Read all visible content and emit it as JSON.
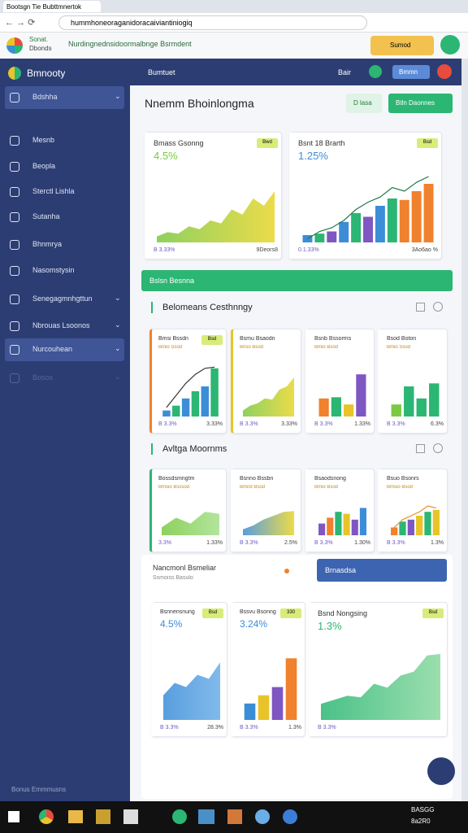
{
  "browser": {
    "tab": "Bootsgn Tie Bubttmnertok",
    "url": "hummhoneoraganidoracaiviantiniogiq",
    "site_name": "Sonat.",
    "site_name2": "Dbonds",
    "site_title": "Nurdingnednsidoormalbnge Bsrmdent",
    "site_button": "Sumod"
  },
  "sidebar": {
    "brand": "Bmnooty",
    "items": [
      {
        "label": "Bdshha",
        "active": true,
        "arrow": true
      },
      {
        "label": "Mesnb"
      },
      {
        "label": "Beopla"
      },
      {
        "label": "Sterctl Lishla"
      },
      {
        "label": "Sutanha"
      },
      {
        "label": "Bhnmrya"
      },
      {
        "label": "Nasomstysin"
      },
      {
        "label": "Senegagmnhgttun",
        "arrow": true
      },
      {
        "label": "Nbrouas Lsoonos",
        "arrow": true
      },
      {
        "label": "Nurcouhean",
        "active": true,
        "arrow": true
      },
      {
        "label": "Bosos",
        "faded": true,
        "arrow": true
      }
    ],
    "footer": "Bonus Emmmusns"
  },
  "topbar": {
    "title": "Bumtuet",
    "link": "Bair",
    "button": "Bmmn"
  },
  "header": {
    "title": "Nnemm Bhoinlongma",
    "buttons": [
      "D lasa",
      "Btln Daonnes"
    ]
  },
  "top_cards": [
    {
      "title": "Bmass Gsonng",
      "value": "4.5%",
      "badge": "Bwd",
      "foot_left": "B 3.33%",
      "foot_right": "9Deors8",
      "accent": "#ffffff",
      "chart": {
        "type": "area",
        "color": "#7ac943",
        "color2": "#e8d52a",
        "values": [
          8,
          14,
          12,
          22,
          18,
          30,
          26,
          45,
          38,
          60,
          50,
          70
        ]
      }
    },
    {
      "title": "Bsnt 18 Brarth",
      "value": "1.25%",
      "badge": "Bsd",
      "foot_left": "0.1.33%",
      "foot_right": "3Ao6ao %",
      "accent": "#ffffff",
      "chart": {
        "type": "combo",
        "colors": [
          "#3c8dd8",
          "#2bb673",
          "#7e57c2",
          "#3c8dd8",
          "#2bb673",
          "#7e57c2",
          "#3c8dd8",
          "#2bb673",
          "#f0812d",
          "#f0812d",
          "#f0812d"
        ],
        "values": [
          10,
          12,
          15,
          28,
          40,
          35,
          50,
          60,
          58,
          70,
          80
        ],
        "line_color": "#1f7a4a",
        "line_values": [
          5,
          15,
          20,
          30,
          45,
          55,
          62,
          75,
          70,
          82,
          90
        ]
      }
    }
  ],
  "banner": "Bslsn Besnna",
  "sections": [
    {
      "title": "Belomeans Cesthnngy",
      "cards": [
        {
          "title": "Bmsi Bssdn",
          "subtitle": "Bmio Ssod",
          "badge": "Bsd",
          "foot_left": "B 3.3%",
          "foot_right": "3.33%",
          "accent": "#f0812d",
          "chart": {
            "type": "combo",
            "colors": [
              "#3c8dd8",
              "#2bb673",
              "#3c8dd8",
              "#2bb673",
              "#3c8dd8",
              "#2bb673"
            ],
            "values": [
              10,
              18,
              30,
              42,
              50,
              80
            ],
            "line_color": "#333333",
            "line_values": [
              15,
              35,
              55,
              70,
              80,
              82
            ]
          }
        },
        {
          "title": "Bsmu Bsaodn",
          "subtitle": "Bnso Bsod",
          "foot_left": "B 3.3%",
          "foot_right": "3.33%",
          "accent": "#e8c42a",
          "chart": {
            "type": "area",
            "color": "#7ac943",
            "color2": "#e8d52a",
            "values": [
              10,
              18,
              22,
              30,
              28,
              45,
              50,
              65
            ]
          }
        },
        {
          "title": "Bsnb Bssorms",
          "subtitle": "Bmio Bsod",
          "foot_left": "B 3.3%",
          "foot_right": "1.33%",
          "accent": "#ffffff",
          "chart": {
            "type": "bar",
            "colors": [
              "#f0812d",
              "#2bb673",
              "#e8c42a",
              "#7e57c2"
            ],
            "values": [
              30,
              32,
              20,
              70
            ]
          }
        },
        {
          "title": "Bsod Boton",
          "subtitle": "Bmio Ssod",
          "foot_left": "B 3.3%",
          "foot_right": "6.3%",
          "accent": "#ffffff",
          "chart": {
            "type": "bar",
            "colors": [
              "#7ac943",
              "#2bb673",
              "#2bb673",
              "#2bb673"
            ],
            "values": [
              20,
              50,
              30,
              55
            ]
          }
        }
      ]
    },
    {
      "title": "Avltga Moornms",
      "cards": [
        {
          "title": "Bossdsmngtm",
          "subtitle": "Bmsio Bsssod",
          "foot_left": "3.3%",
          "foot_right": "1.33%",
          "accent": "#2bb673",
          "chart": {
            "type": "area",
            "color": "#7ac943",
            "color2": "#a5e08a",
            "values": [
              20,
              45,
              30,
              60,
              55
            ]
          }
        },
        {
          "title": "Bsnno Bssbn",
          "subtitle": "Bmnd Bsod",
          "foot_left": "B 3.3%",
          "foot_right": "2.5%",
          "accent": "#ffffff",
          "chart": {
            "type": "area",
            "color": "#3c8dd8",
            "color2": "#e8d52a",
            "values": [
              15,
              25,
              40,
              50,
              60,
              62
            ]
          }
        },
        {
          "title": "Bsaodsnong",
          "subtitle": "Bmio Bsod",
          "foot_left": "B 3.3%",
          "foot_right": "1.30%",
          "accent": "#ffffff",
          "chart": {
            "type": "bar",
            "colors": [
              "#7e57c2",
              "#f0812d",
              "#2bb673",
              "#e8c42a",
              "#7e57c2",
              "#3c8dd8"
            ],
            "values": [
              30,
              45,
              60,
              55,
              40,
              70
            ]
          }
        },
        {
          "title": "Bsuo Bsonrs",
          "subtitle": "Bmsio Bsod",
          "foot_left": "B 3.3%",
          "foot_right": "1.3%",
          "accent": "#ffffff",
          "chart": {
            "type": "combo",
            "colors": [
              "#f0812d",
              "#2bb673",
              "#7e57c2",
              "#e8c42a",
              "#2bb673",
              "#e8c42a"
            ],
            "values": [
              20,
              35,
              40,
              50,
              60,
              65
            ],
            "line_color": "#e8902a",
            "line_values": [
              20,
              40,
              50,
              60,
              75,
              70
            ]
          }
        }
      ]
    }
  ],
  "notice": {
    "title": "Nancmonl Bsmeliar",
    "subtitle": "Ssmoiss Basulo",
    "action": "Brnasdsa"
  },
  "bottom_cards": [
    {
      "title": "Bsnnensnung",
      "value": "4.5%",
      "badge": "Bsd",
      "foot_left": "B 3.3%",
      "foot_right": "28.3%",
      "accent": "#ffffff",
      "chart": {
        "type": "area",
        "color": "#3c8dd8",
        "color2": "#6aaee8",
        "values": [
          30,
          45,
          40,
          55,
          50,
          70
        ]
      }
    },
    {
      "title": "Bssvu Bsonng",
      "value": "3.24%",
      "badge": "330",
      "foot_left": "B 3.3%",
      "foot_right": "1.3%",
      "accent": "#ffffff",
      "chart": {
        "type": "bar",
        "colors": [
          "#3c8dd8",
          "#e8c42a",
          "#7e57c2",
          "#f0812d"
        ],
        "values": [
          20,
          30,
          40,
          75
        ]
      }
    },
    {
      "title": "Bsnd Nongsing",
      "value": "1.3%",
      "badge": "Bsd",
      "foot_left": "B 3.3%",
      "foot_right": "",
      "accent": "#ffffff",
      "chart": {
        "type": "area",
        "color": "#2bb673",
        "color2": "#8ad9a0",
        "values": [
          20,
          25,
          30,
          28,
          45,
          40,
          55,
          60,
          80,
          82
        ]
      }
    }
  ],
  "taskbar": {
    "time": "BASGG",
    "date": "8a2R0"
  }
}
